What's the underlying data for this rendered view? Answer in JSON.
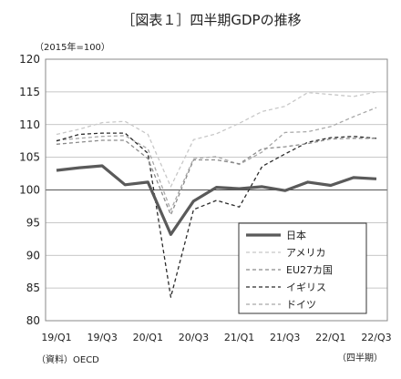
{
  "chart_data": {
    "type": "line",
    "title": "［図表１］四半期GDPの推移",
    "unit_label": "（2015年=100）",
    "source_label": "（資料）OECD",
    "x_unit_label": "（四半期）",
    "quarters": [
      "19/Q1",
      "19/Q2",
      "19/Q3",
      "19/Q4",
      "20/Q1",
      "20/Q2",
      "20/Q3",
      "20/Q4",
      "21/Q1",
      "21/Q2",
      "21/Q3",
      "21/Q4",
      "22/Q1",
      "22/Q2",
      "22/Q3"
    ],
    "x_tick_labels": [
      "19/Q1",
      "19/Q3",
      "20/Q1",
      "20/Q3",
      "21/Q1",
      "21/Q3",
      "22/Q1",
      "22/Q3"
    ],
    "ylim": [
      80,
      120
    ],
    "y_ticks": [
      80,
      85,
      90,
      95,
      100,
      105,
      110,
      115,
      120
    ],
    "grid": "horizontal",
    "legend_position": "bottom-right",
    "series": [
      {
        "name": "日本",
        "color": "#5a5a5a",
        "style": "solid-thick",
        "values": [
          103.0,
          103.4,
          103.7,
          100.8,
          101.2,
          93.2,
          98.3,
          100.4,
          100.2,
          100.5,
          99.9,
          101.2,
          100.7,
          101.9,
          101.7
        ]
      },
      {
        "name": "アメリカ",
        "color": "#c8c8c8",
        "style": "dashed",
        "values": [
          108.5,
          109.3,
          110.3,
          110.5,
          108.5,
          100.5,
          107.7,
          108.6,
          110.2,
          112.0,
          112.8,
          114.9,
          114.6,
          114.3,
          115.0
        ]
      },
      {
        "name": "EU27カ国",
        "color": "#8a8a8a",
        "style": "dashed",
        "values": [
          107.0,
          107.3,
          107.6,
          107.6,
          104.8,
          96.2,
          104.6,
          104.6,
          104.0,
          106.3,
          106.6,
          107.1,
          107.8,
          107.9,
          107.9
        ]
      },
      {
        "name": "イギリス",
        "color": "#2b2b2b",
        "style": "dashed",
        "values": [
          107.5,
          108.5,
          108.7,
          108.7,
          105.6,
          83.6,
          97.0,
          98.4,
          97.4,
          103.6,
          105.5,
          107.3,
          108.0,
          108.2,
          107.9
        ]
      },
      {
        "name": "ドイツ",
        "color": "#a8a8a8",
        "style": "dashed",
        "values": [
          107.6,
          107.9,
          108.2,
          108.3,
          106.3,
          96.9,
          104.8,
          105.1,
          103.9,
          105.8,
          108.8,
          108.9,
          109.7,
          111.2,
          112.6
        ]
      }
    ]
  }
}
